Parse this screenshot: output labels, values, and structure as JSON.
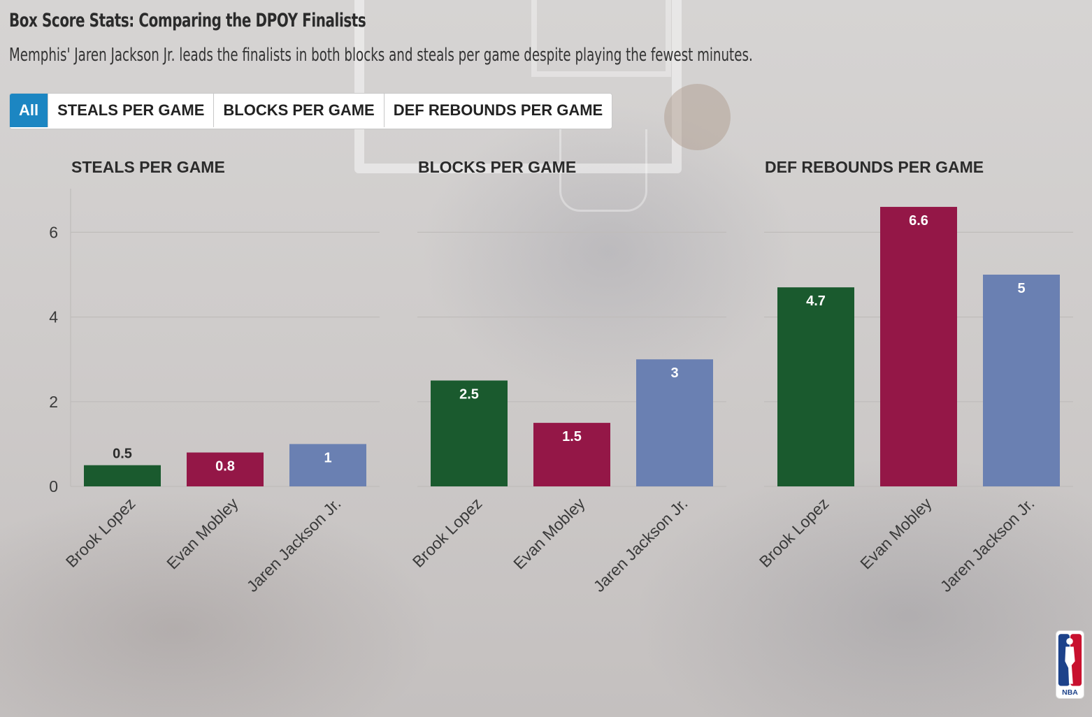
{
  "title": "Box Score Stats: Comparing the DPOY Finalists",
  "subtitle": "Memphis' Jaren Jackson Jr. leads the finalists in both blocks and steals per game despite playing the fewest minutes.",
  "tabs": [
    {
      "label": "All",
      "active": true
    },
    {
      "label": "STEALS PER GAME",
      "active": false
    },
    {
      "label": "BLOCKS PER GAME",
      "active": false
    },
    {
      "label": "DEF REBOUNDS PER GAME",
      "active": false
    }
  ],
  "colors": {
    "Brook Lopez": "#1a5a2e",
    "Evan Mobley": "#941747",
    "Jaren Jackson Jr.": "#6a80b2",
    "tab_active": "#1c86c2"
  },
  "logo_text": "NBA",
  "chart_data": [
    {
      "type": "bar",
      "title": "STEALS PER GAME",
      "categories": [
        "Brook Lopez",
        "Evan Mobley",
        "Jaren Jackson Jr."
      ],
      "values": [
        0.5,
        0.8,
        1
      ],
      "data_labels": [
        "0.5",
        "0.8",
        "1"
      ],
      "ylim": [
        0,
        7
      ],
      "yticks": [
        0,
        2,
        4,
        6
      ],
      "show_y_axis": true
    },
    {
      "type": "bar",
      "title": "BLOCKS PER GAME",
      "categories": [
        "Brook Lopez",
        "Evan Mobley",
        "Jaren Jackson Jr."
      ],
      "values": [
        2.5,
        1.5,
        3
      ],
      "data_labels": [
        "2.5",
        "1.5",
        "3"
      ],
      "ylim": [
        0,
        7
      ],
      "yticks": [
        0,
        2,
        4,
        6
      ],
      "show_y_axis": false
    },
    {
      "type": "bar",
      "title": "DEF REBOUNDS PER GAME",
      "categories": [
        "Brook Lopez",
        "Evan Mobley",
        "Jaren Jackson Jr."
      ],
      "values": [
        4.7,
        6.6,
        5
      ],
      "data_labels": [
        "4.7",
        "6.6",
        "5"
      ],
      "ylim": [
        0,
        7
      ],
      "yticks": [
        0,
        2,
        4,
        6
      ],
      "show_y_axis": false
    }
  ]
}
